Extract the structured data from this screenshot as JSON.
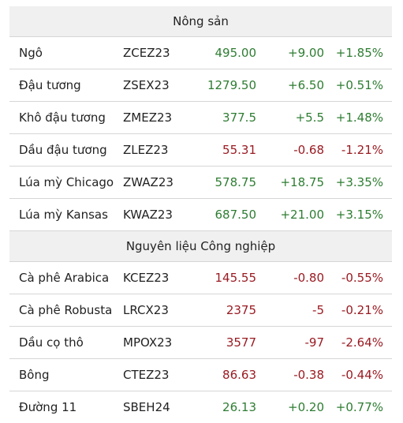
{
  "colors": {
    "up": "#2e7d32",
    "down": "#9a1b22",
    "header_bg": "#f0f0f0",
    "border": "#d6d6d6"
  },
  "sections": [
    {
      "title": "Nông sản",
      "rows": [
        {
          "name": "Ngô",
          "code": "ZCEZ23",
          "price": "495.00",
          "change": "+9.00",
          "pct": "+1.85%",
          "direction": "up"
        },
        {
          "name": "Đậu tương",
          "code": "ZSEX23",
          "price": "1279.50",
          "change": "+6.50",
          "pct": "+0.51%",
          "direction": "up"
        },
        {
          "name": "Khô đậu tương",
          "code": "ZMEZ23",
          "price": "377.5",
          "change": "+5.5",
          "pct": "+1.48%",
          "direction": "up"
        },
        {
          "name": "Dầu đậu tương",
          "code": "ZLEZ23",
          "price": "55.31",
          "change": "-0.68",
          "pct": "-1.21%",
          "direction": "down"
        },
        {
          "name": "Lúa mỳ Chicago",
          "code": "ZWAZ23",
          "price": "578.75",
          "change": "+18.75",
          "pct": "+3.35%",
          "direction": "up"
        },
        {
          "name": "Lúa mỳ Kansas",
          "code": "KWAZ23",
          "price": "687.50",
          "change": "+21.00",
          "pct": "+3.15%",
          "direction": "up"
        }
      ]
    },
    {
      "title": "Nguyên liệu Công nghiệp",
      "rows": [
        {
          "name": "Cà phê Arabica",
          "code": "KCEZ23",
          "price": "145.55",
          "change": "-0.80",
          "pct": "-0.55%",
          "direction": "down"
        },
        {
          "name": "Cà phê Robusta",
          "code": "LRCX23",
          "price": "2375",
          "change": "-5",
          "pct": "-0.21%",
          "direction": "down"
        },
        {
          "name": "Dầu cọ thô",
          "code": "MPOX23",
          "price": "3577",
          "change": "-97",
          "pct": "-2.64%",
          "direction": "down"
        },
        {
          "name": "Bông",
          "code": "CTEZ23",
          "price": "86.63",
          "change": "-0.38",
          "pct": "-0.44%",
          "direction": "down"
        },
        {
          "name": "Đường 11",
          "code": "SBEH24",
          "price": "26.13",
          "change": "+0.20",
          "pct": "+0.77%",
          "direction": "up"
        }
      ]
    }
  ]
}
